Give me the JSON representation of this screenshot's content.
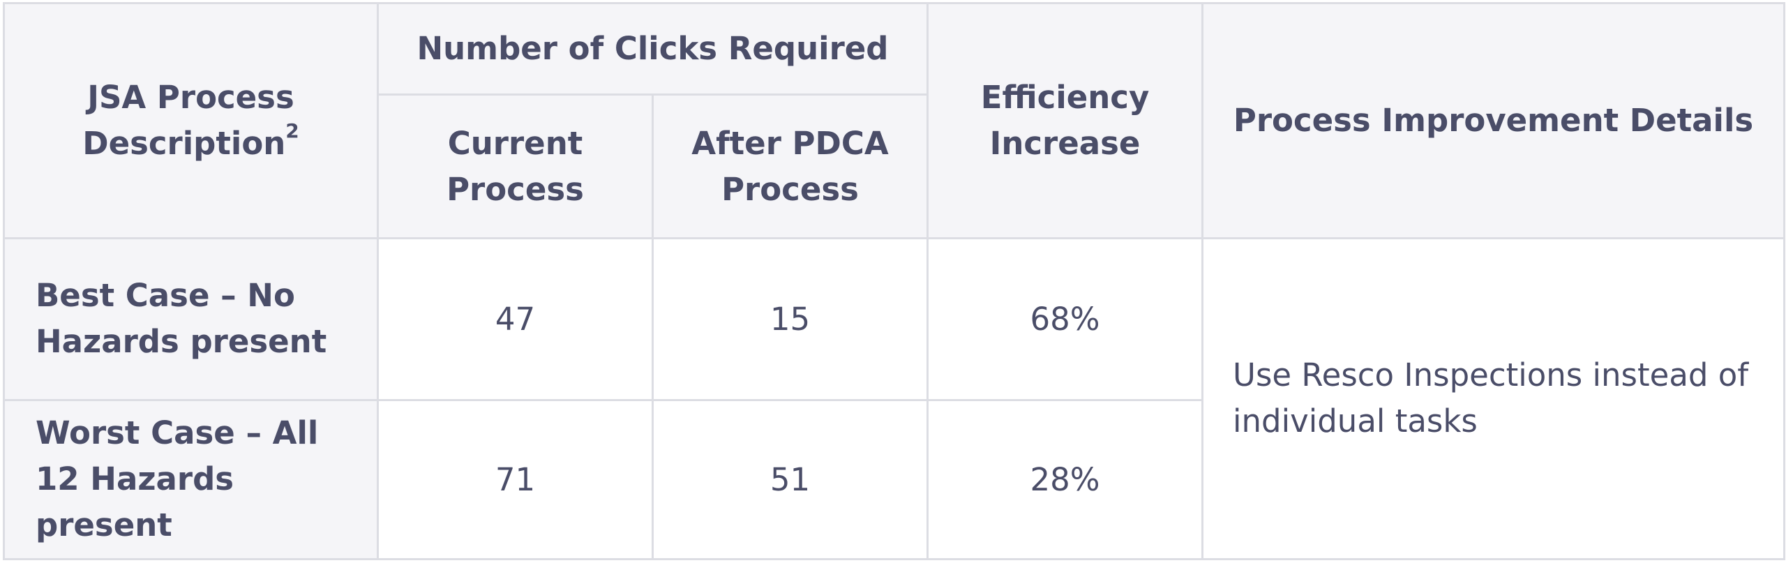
{
  "table": {
    "headers": {
      "description": "JSA Process Description",
      "description_sup": "2",
      "clicks_group": "Number of Clicks Required",
      "current": "Current Process",
      "after": "After PDCA Process",
      "efficiency": "Efficiency Increase",
      "details": "Process Improvement Details"
    },
    "rows": [
      {
        "label": "Best Case –  No Hazards present",
        "current": "47",
        "after": "15",
        "efficiency": "68%"
      },
      {
        "label": "Worst Case – All 12 Hazards present",
        "current": "71",
        "after": "51",
        "efficiency": "28%"
      }
    ],
    "details": "Use Resco Inspections instead of individual tasks"
  }
}
